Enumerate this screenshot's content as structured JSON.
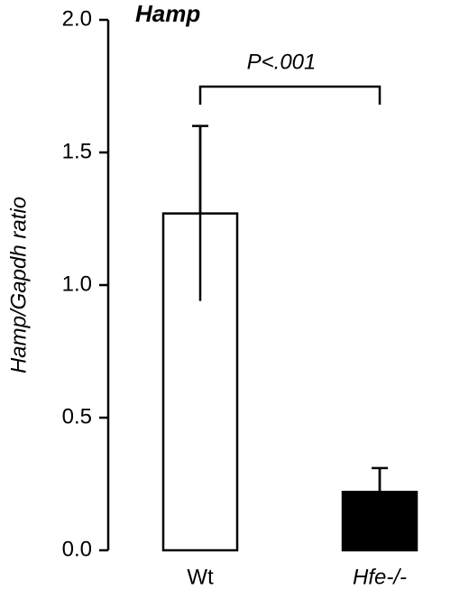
{
  "chart_data": {
    "type": "bar",
    "title": "Hamp",
    "y_label": "Hamp/Gapdh ratio",
    "categories": [
      "Wt",
      "Hfe-/-"
    ],
    "values": [
      1.27,
      0.22
    ],
    "errors": [
      0.33,
      0.09
    ],
    "colors": [
      "#ffffff",
      "#000000"
    ],
    "ylim": [
      0,
      2
    ],
    "yticks": [
      {
        "value": 0,
        "label": "0.0"
      },
      {
        "value": 0.5,
        "label": "0.5"
      },
      {
        "value": 1,
        "label": "1.0"
      },
      {
        "value": 1.5,
        "label": "1.5"
      },
      {
        "value": 2,
        "label": "2.0"
      }
    ],
    "annotation": "P<.001"
  }
}
